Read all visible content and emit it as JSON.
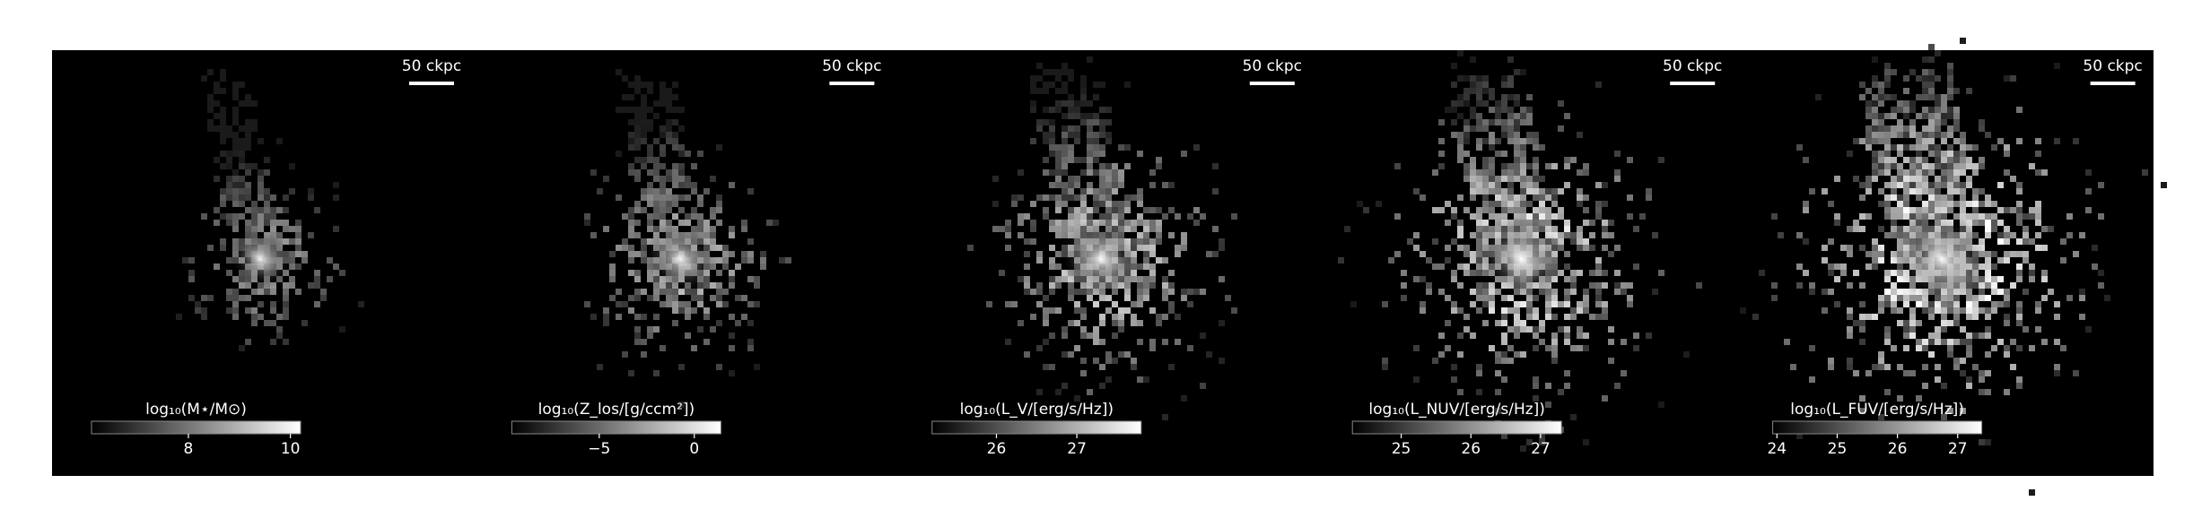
{
  "panels": [
    {
      "scale_bar": "50 ckpc",
      "colorbar": {
        "label": "log₁₀(M⋆/M⊙)",
        "lim": [
          6.1,
          10.2
        ],
        "ticks": [
          8,
          10
        ]
      }
    },
    {
      "scale_bar": "50 ckpc",
      "colorbar": {
        "label": "log₁₀(Z_los/[g/ccm²])",
        "lim": [
          -9.6,
          1.4
        ],
        "ticks": [
          {
            "value": -5,
            "label": "−5"
          },
          0
        ]
      }
    },
    {
      "scale_bar": "50 ckpc",
      "colorbar": {
        "label": "log₁₀(L_V/[erg/s/Hz])",
        "lim": [
          25.2,
          27.8
        ],
        "ticks": [
          26,
          27
        ]
      }
    },
    {
      "scale_bar": "50 ckpc",
      "colorbar": {
        "label": "log₁₀(L_NUV/[erg/s/Hz])",
        "lim": [
          24.3,
          27.3
        ],
        "ticks": [
          25,
          26,
          27
        ]
      }
    },
    {
      "scale_bar": "50 ckpc",
      "colorbar": {
        "label": "log₁₀(L_FUV/[erg/s/Hz])",
        "lim": [
          23.93,
          27.4
        ],
        "ticks": [
          24,
          25,
          26,
          27
        ]
      }
    }
  ]
}
